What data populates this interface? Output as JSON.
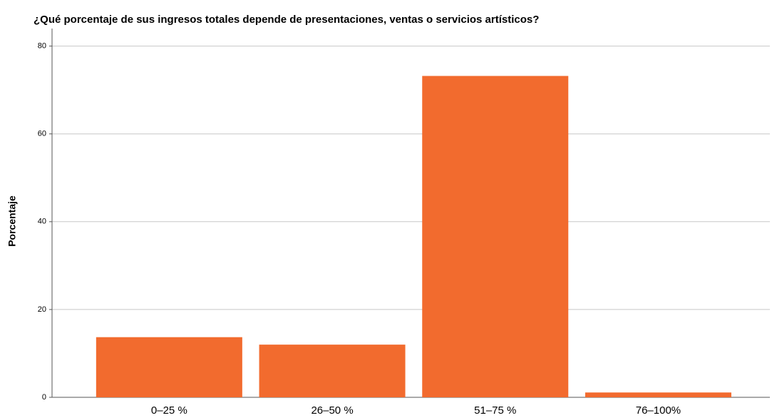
{
  "chart_data": {
    "type": "bar",
    "title": "¿Qué porcentaje de sus ingresos totales depende de presentaciones, ventas o servicios artísticos?",
    "y_label": "Porcentaje",
    "categories": [
      "0–25 %",
      "26–50 %",
      "51–75 %",
      "76–100%"
    ],
    "values": [
      13.7,
      12.0,
      73.2,
      1.1
    ],
    "color": "#f26b2e",
    "ylim": [
      0,
      84
    ],
    "yticks": [
      0,
      20,
      40,
      60,
      80
    ],
    "grid": true
  }
}
